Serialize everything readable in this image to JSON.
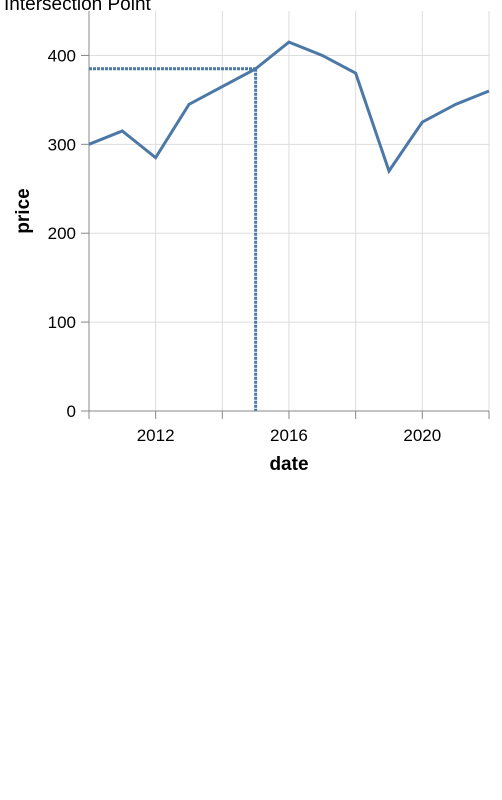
{
  "chart_data": {
    "type": "line",
    "title": "Intersection Point",
    "xlabel": "date",
    "ylabel": "price",
    "x_tick_labels": [
      "2012",
      "2016",
      "2020"
    ],
    "y_tick_labels": [
      "0",
      "100",
      "200",
      "300",
      "400"
    ],
    "xlim": [
      "2010-01-01",
      "2022-01-01"
    ],
    "ylim": [
      0,
      450
    ],
    "grid": true,
    "series": [
      {
        "x": [
          "2010-01-01",
          "2011-01-01",
          "2012-01-01",
          "2013-01-01",
          "2014-01-01",
          "2015-01-01",
          "2016-01-01",
          "2017-01-01",
          "2018-01-01",
          "2019-01-01",
          "2020-01-01",
          "2021-01-01",
          "2022-01-01"
        ],
        "values": [
          300,
          315,
          285,
          345,
          365,
          385,
          415,
          400,
          380,
          270,
          325,
          345,
          360
        ]
      }
    ],
    "annotation": {
      "type": "intersection-guides",
      "x": "2015-01-01",
      "y": 385
    },
    "colors": {
      "line": "#4c78a8",
      "grid": "#dddddd",
      "axis": "#888888"
    }
  }
}
